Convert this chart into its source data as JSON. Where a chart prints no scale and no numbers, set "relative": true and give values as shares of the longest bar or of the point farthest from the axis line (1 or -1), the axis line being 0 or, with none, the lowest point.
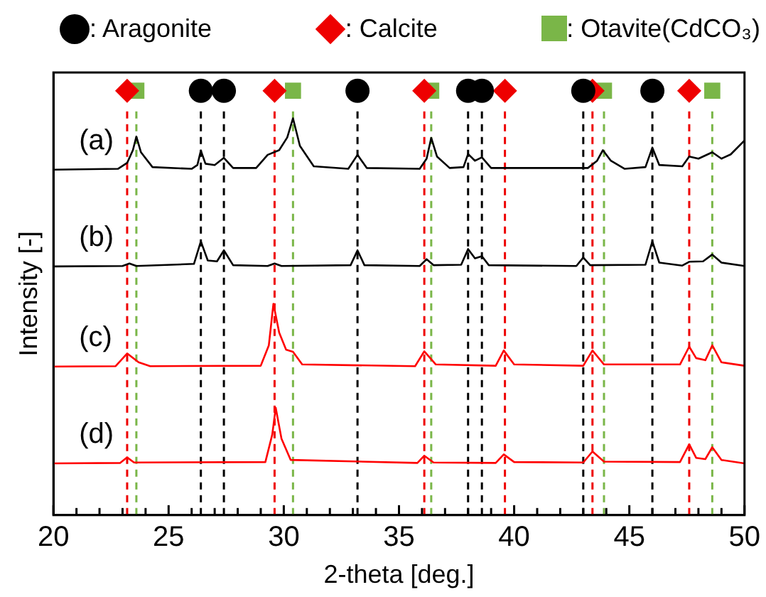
{
  "chart_data": {
    "type": "line",
    "xlabel": "2-theta [deg.]",
    "ylabel": "Intensity [-]",
    "relative": true,
    "legend": "top",
    "grid": false,
    "xlim": [
      20,
      50
    ],
    "xticks": [
      20,
      {
        "value": 21,
        "label": null
      },
      {
        "value": 22,
        "label": null
      },
      {
        "value": 23,
        "label": null
      },
      {
        "value": 24,
        "label": null
      },
      25,
      {
        "value": 26,
        "label": null
      },
      {
        "value": 27,
        "label": null
      },
      {
        "value": 28,
        "label": null
      },
      {
        "value": 29,
        "label": null
      },
      30,
      {
        "value": 31,
        "label": null
      },
      {
        "value": 32,
        "label": null
      },
      {
        "value": 33,
        "label": null
      },
      {
        "value": 34,
        "label": null
      },
      35,
      {
        "value": 36,
        "label": null
      },
      {
        "value": 37,
        "label": null
      },
      {
        "value": 38,
        "label": null
      },
      {
        "value": 39,
        "label": null
      },
      40,
      {
        "value": 41,
        "label": null
      },
      {
        "value": 42,
        "label": null
      },
      {
        "value": 43,
        "label": null
      },
      {
        "value": 44,
        "label": null
      },
      45,
      {
        "value": 46,
        "label": null
      },
      {
        "value": 47,
        "label": null
      },
      {
        "value": 48,
        "label": null
      },
      {
        "value": 49,
        "label": null
      },
      50
    ],
    "series": [
      {
        "type": "line",
        "color": "#000000",
        "marker": "none",
        "x": [
          20,
          22.8,
          23.2,
          23.45,
          23.6,
          23.8,
          24.3,
          26.0,
          26.25,
          26.4,
          26.6,
          27.0,
          27.4,
          27.8,
          28.8,
          29.3,
          29.8,
          30.15,
          30.4,
          30.7,
          31.3,
          32.8,
          33.2,
          33.6,
          35.9,
          36.2,
          36.4,
          36.65,
          37.2,
          37.8,
          38.0,
          38.3,
          38.6,
          39.0,
          43.2,
          43.6,
          43.85,
          44.2,
          44.8,
          45.7,
          46.0,
          46.3,
          47.3,
          47.6,
          48.0,
          48.6,
          49.0,
          49.4,
          50
        ],
        "values": [
          0.814,
          0.816,
          0.83,
          0.86,
          0.892,
          0.855,
          0.82,
          0.816,
          0.825,
          0.859,
          0.828,
          0.825,
          0.842,
          0.818,
          0.818,
          0.849,
          0.86,
          0.89,
          0.935,
          0.87,
          0.822,
          0.816,
          0.849,
          0.818,
          0.816,
          0.84,
          0.889,
          0.845,
          0.818,
          0.82,
          0.851,
          0.835,
          0.843,
          0.818,
          0.818,
          0.835,
          0.86,
          0.835,
          0.816,
          0.82,
          0.866,
          0.825,
          0.822,
          0.845,
          0.84,
          0.855,
          0.84,
          0.85,
          0.883
        ]
      },
      {
        "type": "line",
        "color": "#000000",
        "marker": "none",
        "x": [
          20,
          23.0,
          23.3,
          23.6,
          26.1,
          26.4,
          26.7,
          27.1,
          27.4,
          27.8,
          29.3,
          29.6,
          29.9,
          32.9,
          33.2,
          33.5,
          35.9,
          36.2,
          36.5,
          37.7,
          38.0,
          38.3,
          38.6,
          38.9,
          42.7,
          43.0,
          43.3,
          45.7,
          46.0,
          46.3,
          47.3,
          47.6,
          48.2,
          48.6,
          49.0,
          50
        ],
        "values": [
          0.586,
          0.587,
          0.593,
          0.587,
          0.592,
          0.645,
          0.6,
          0.598,
          0.624,
          0.589,
          0.587,
          0.593,
          0.587,
          0.589,
          0.624,
          0.589,
          0.587,
          0.603,
          0.589,
          0.59,
          0.627,
          0.605,
          0.61,
          0.589,
          0.587,
          0.607,
          0.589,
          0.59,
          0.645,
          0.595,
          0.588,
          0.597,
          0.598,
          0.614,
          0.595,
          0.587
        ]
      },
      {
        "type": "line",
        "color": "#ff0000",
        "marker": "none",
        "x": [
          20,
          22.7,
          23.2,
          23.7,
          24.2,
          29.0,
          29.35,
          29.55,
          29.8,
          30.1,
          30.4,
          30.8,
          35.7,
          36.1,
          36.6,
          39.2,
          39.55,
          40.0,
          43.0,
          43.4,
          43.9,
          47.2,
          47.6,
          47.9,
          48.3,
          48.6,
          49.0,
          50
        ],
        "values": [
          0.35,
          0.351,
          0.381,
          0.36,
          0.351,
          0.352,
          0.4,
          0.498,
          0.43,
          0.39,
          0.385,
          0.355,
          0.351,
          0.386,
          0.355,
          0.352,
          0.388,
          0.355,
          0.352,
          0.388,
          0.355,
          0.355,
          0.397,
          0.37,
          0.365,
          0.4,
          0.36,
          0.352
        ]
      },
      {
        "type": "line",
        "color": "#ff0000",
        "marker": "none",
        "x": [
          20,
          22.9,
          23.2,
          23.5,
          29.2,
          29.5,
          29.65,
          29.9,
          30.3,
          35.8,
          36.1,
          36.5,
          39.2,
          39.55,
          40.0,
          43.0,
          43.4,
          43.9,
          47.2,
          47.6,
          47.9,
          48.3,
          48.6,
          49.0,
          50
        ],
        "values": [
          0.122,
          0.123,
          0.136,
          0.124,
          0.125,
          0.19,
          0.253,
          0.18,
          0.13,
          0.123,
          0.14,
          0.124,
          0.123,
          0.143,
          0.125,
          0.124,
          0.15,
          0.126,
          0.125,
          0.167,
          0.135,
          0.132,
          0.16,
          0.13,
          0.122
        ]
      },
      {
        "type": "scatter",
        "name": ": Aragonite",
        "color": "#000000",
        "marker": "circle",
        "x": [
          26.4,
          27.4,
          33.2,
          38.0,
          38.6,
          43.0,
          46.0
        ],
        "values": [
          1,
          1,
          1,
          1,
          1,
          1,
          1
        ]
      },
      {
        "type": "scatter",
        "name": ": Calcite",
        "color": "#ee0000",
        "marker": "diamond",
        "x": [
          23.2,
          29.6,
          36.1,
          39.6,
          43.4,
          47.6
        ],
        "values": [
          1,
          1,
          1,
          1,
          1,
          1
        ]
      },
      {
        "type": "scatter",
        "name": ": Otavite(CdCO₃)",
        "color": "#7ab648",
        "marker": "square",
        "x": [
          23.6,
          30.4,
          36.4,
          43.9,
          48.6
        ],
        "values": [
          1,
          1,
          1,
          1,
          1
        ]
      }
    ],
    "ref_lines": [
      {
        "axis": "x",
        "value": 23.2,
        "color": "#ee0000",
        "line_style": "dashed"
      },
      {
        "axis": "x",
        "value": 23.6,
        "color": "#7ab648",
        "line_style": "dashed"
      },
      {
        "axis": "x",
        "value": 26.4,
        "color": "#000000",
        "line_style": "dashed"
      },
      {
        "axis": "x",
        "value": 27.4,
        "color": "#000000",
        "line_style": "dashed"
      },
      {
        "axis": "x",
        "value": 29.6,
        "color": "#ee0000",
        "line_style": "dashed"
      },
      {
        "axis": "x",
        "value": 30.4,
        "color": "#7ab648",
        "line_style": "dashed"
      },
      {
        "axis": "x",
        "value": 33.2,
        "color": "#000000",
        "line_style": "dashed"
      },
      {
        "axis": "x",
        "value": 36.1,
        "color": "#ee0000",
        "line_style": "dashed"
      },
      {
        "axis": "x",
        "value": 36.4,
        "color": "#7ab648",
        "line_style": "dashed"
      },
      {
        "axis": "x",
        "value": 38.0,
        "color": "#000000",
        "line_style": "dashed"
      },
      {
        "axis": "x",
        "value": 38.6,
        "color": "#000000",
        "line_style": "dashed"
      },
      {
        "axis": "x",
        "value": 39.6,
        "color": "#ee0000",
        "line_style": "dashed"
      },
      {
        "axis": "x",
        "value": 43.0,
        "color": "#000000",
        "line_style": "dashed"
      },
      {
        "axis": "x",
        "value": 43.4,
        "color": "#ee0000",
        "line_style": "dashed"
      },
      {
        "axis": "x",
        "value": 43.9,
        "color": "#7ab648",
        "line_style": "dashed"
      },
      {
        "axis": "x",
        "value": 46.0,
        "color": "#000000",
        "line_style": "dashed"
      },
      {
        "axis": "x",
        "value": 47.6,
        "color": "#ee0000",
        "line_style": "dashed"
      },
      {
        "axis": "x",
        "value": 48.6,
        "color": "#7ab648",
        "line_style": "dashed"
      }
    ],
    "annotations": [
      "(a)",
      "(b)",
      "(c)",
      "(d)"
    ]
  }
}
